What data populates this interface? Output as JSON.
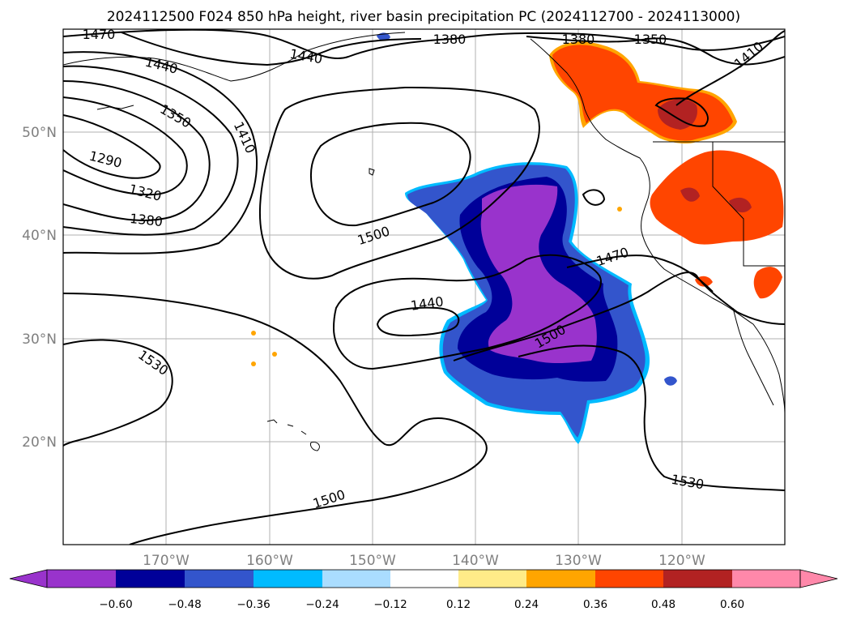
{
  "title": "2024112500 F024 850 hPa height, river basin precipitation PC (2024112700 - 2024113000)",
  "map": {
    "lon_ticks": [
      "170°W",
      "160°W",
      "150°W",
      "140°W",
      "130°W",
      "120°W"
    ],
    "lat_ticks": [
      "50°N",
      "40°N",
      "30°N",
      "20°N"
    ],
    "grid": true
  },
  "contour_labels": [
    "1470",
    "1440",
    "1380",
    "1440",
    "1380",
    "1350",
    "1410",
    "1350",
    "1410",
    "1290",
    "1320",
    "1380",
    "1500",
    "1470",
    "1440",
    "1500",
    "1530",
    "1500",
    "1530"
  ],
  "colorbar": {
    "colors": [
      "#9933cc",
      "#000099",
      "#3355cc",
      "#00bbff",
      "#aaddff",
      "#ffffff",
      "#ffeb88",
      "#ffa500",
      "#ff4500",
      "#b22222",
      "#ff88aa"
    ],
    "tick_labels": [
      "−0.60",
      "−0.48",
      "−0.36",
      "−0.24",
      "−0.12",
      "0.12",
      "0.24",
      "0.36",
      "0.48",
      "0.60"
    ],
    "extend": "both"
  }
}
